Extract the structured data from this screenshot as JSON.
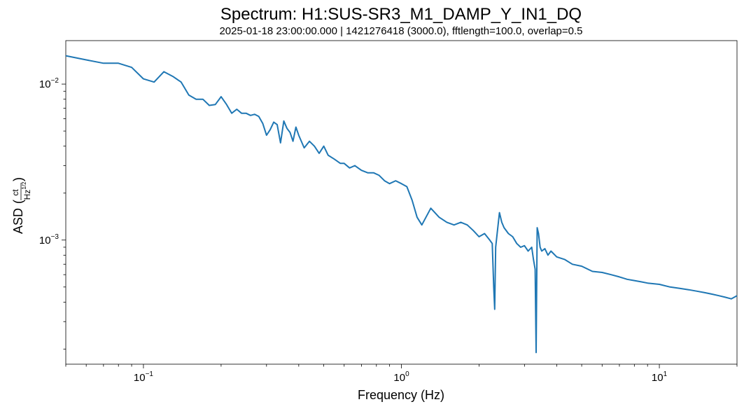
{
  "chart_data": {
    "type": "line",
    "title": "Spectrum: H1:SUS-SR3_M1_DAMP_Y_IN1_DQ",
    "subtitle": "2025-01-18 23:00:00.000 | 1421276418 (3000.0), fftlength=100.0, overlap=0.5",
    "xlabel": "Frequency (Hz)",
    "ylabel": {
      "prefix": "ASD",
      "unit_numerator": "ct",
      "unit_denominator_base": "Hz",
      "unit_denominator_exponent": "1/2"
    },
    "xscale": "log",
    "yscale": "log",
    "xlim": [
      0.05,
      20
    ],
    "ylim": [
      0.00016,
      0.019
    ],
    "grid": false,
    "x_ticks": [
      {
        "value": 0.1,
        "base": "10",
        "exp": "−1"
      },
      {
        "value": 1,
        "base": "10",
        "exp": "0"
      },
      {
        "value": 10,
        "base": "10",
        "exp": "1"
      }
    ],
    "y_ticks": [
      {
        "value": 0.01,
        "base": "10",
        "exp": "−2"
      },
      {
        "value": 0.001,
        "base": "10",
        "exp": "−3"
      }
    ],
    "series": [
      {
        "name": "H1:SUS-SR3_M1_DAMP_Y_IN1_DQ",
        "color": "#1f77b4",
        "x": [
          0.05,
          0.06,
          0.07,
          0.08,
          0.09,
          0.1,
          0.11,
          0.12,
          0.13,
          0.14,
          0.15,
          0.16,
          0.17,
          0.18,
          0.19,
          0.2,
          0.21,
          0.22,
          0.23,
          0.24,
          0.25,
          0.26,
          0.27,
          0.28,
          0.29,
          0.3,
          0.31,
          0.32,
          0.33,
          0.34,
          0.35,
          0.36,
          0.37,
          0.38,
          0.39,
          0.4,
          0.42,
          0.44,
          0.46,
          0.48,
          0.5,
          0.52,
          0.55,
          0.58,
          0.6,
          0.63,
          0.66,
          0.7,
          0.74,
          0.78,
          0.82,
          0.86,
          0.9,
          0.95,
          1.0,
          1.05,
          1.1,
          1.15,
          1.2,
          1.3,
          1.4,
          1.5,
          1.6,
          1.7,
          1.8,
          1.9,
          2.0,
          2.1,
          2.2,
          2.25,
          2.28,
          2.3,
          2.32,
          2.35,
          2.4,
          2.45,
          2.5,
          2.6,
          2.7,
          2.8,
          2.9,
          3.0,
          3.1,
          3.2,
          3.25,
          3.3,
          3.33,
          3.36,
          3.4,
          3.45,
          3.5,
          3.6,
          3.7,
          3.8,
          4.0,
          4.3,
          4.6,
          5.0,
          5.5,
          6.0,
          6.5,
          7.0,
          7.5,
          8.0,
          8.5,
          9.0,
          10.0,
          11.0,
          12.0,
          13.0,
          14.0,
          15.0,
          16.0,
          17.0,
          18.0,
          19.0,
          20.0
        ],
        "y": [
          0.0152,
          0.0143,
          0.0136,
          0.0136,
          0.0128,
          0.0108,
          0.0103,
          0.012,
          0.0112,
          0.0103,
          0.0085,
          0.008,
          0.008,
          0.0073,
          0.0074,
          0.0083,
          0.0074,
          0.0065,
          0.0069,
          0.0065,
          0.0065,
          0.0063,
          0.0064,
          0.0062,
          0.0056,
          0.0047,
          0.0051,
          0.0057,
          0.0055,
          0.0042,
          0.0058,
          0.0052,
          0.0049,
          0.0043,
          0.0053,
          0.0047,
          0.0039,
          0.0043,
          0.004,
          0.0036,
          0.004,
          0.0035,
          0.0033,
          0.0031,
          0.0031,
          0.0029,
          0.003,
          0.0028,
          0.0027,
          0.0027,
          0.0026,
          0.0024,
          0.0023,
          0.0024,
          0.0023,
          0.0022,
          0.0018,
          0.0014,
          0.00125,
          0.0016,
          0.0014,
          0.0013,
          0.00125,
          0.0013,
          0.00125,
          0.00115,
          0.00105,
          0.0011,
          0.001,
          0.00095,
          0.0005,
          0.00036,
          0.0009,
          0.0011,
          0.0015,
          0.0013,
          0.0012,
          0.0011,
          0.00105,
          0.00095,
          0.0009,
          0.00092,
          0.00085,
          0.0009,
          0.00075,
          0.00065,
          0.00019,
          0.0012,
          0.0011,
          0.0009,
          0.00085,
          0.00088,
          0.0008,
          0.00085,
          0.00078,
          0.00075,
          0.0007,
          0.00068,
          0.00063,
          0.00062,
          0.0006,
          0.00058,
          0.00056,
          0.00055,
          0.00054,
          0.00053,
          0.00052,
          0.0005,
          0.00049,
          0.00048,
          0.00047,
          0.00046,
          0.00045,
          0.00044,
          0.00043,
          0.00042,
          0.00044
        ]
      }
    ]
  }
}
